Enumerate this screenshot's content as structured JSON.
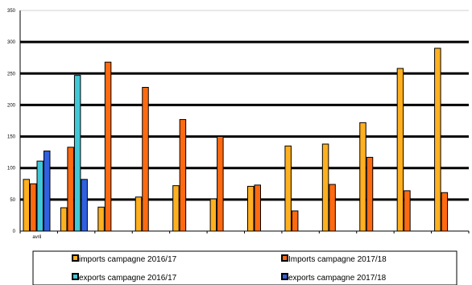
{
  "chart_data": {
    "type": "bar",
    "categories": [
      "avril",
      "",
      "",
      "",
      "",
      "",
      "",
      "",
      "",
      "",
      "",
      ""
    ],
    "series": [
      {
        "name": "imports campagne  2016/17",
        "color": "#ffb020",
        "values": [
          82,
          37,
          38,
          54,
          72,
          51,
          71,
          135,
          138,
          172,
          258,
          290
        ]
      },
      {
        "name": "Imports campagne  2017/18",
        "color": "#ff6a10",
        "values": [
          75,
          133,
          268,
          228,
          177,
          150,
          73,
          32,
          74,
          117,
          64,
          61
        ]
      },
      {
        "name": "exports campagne  2016/17",
        "color": "#40c8d8",
        "values": [
          111,
          247,
          null,
          null,
          null,
          null,
          null,
          null,
          null,
          null,
          null,
          null
        ]
      },
      {
        "name": "exports campagne  2017/18",
        "color": "#3060e0",
        "values": [
          127,
          82,
          null,
          null,
          null,
          null,
          null,
          null,
          null,
          null,
          null,
          null
        ]
      }
    ],
    "yticks": [
      "0",
      "50",
      "100",
      "150",
      "200",
      "250",
      "300",
      "350"
    ],
    "ylim": [
      0,
      350
    ],
    "grid": true,
    "legend_position": "bottom"
  }
}
